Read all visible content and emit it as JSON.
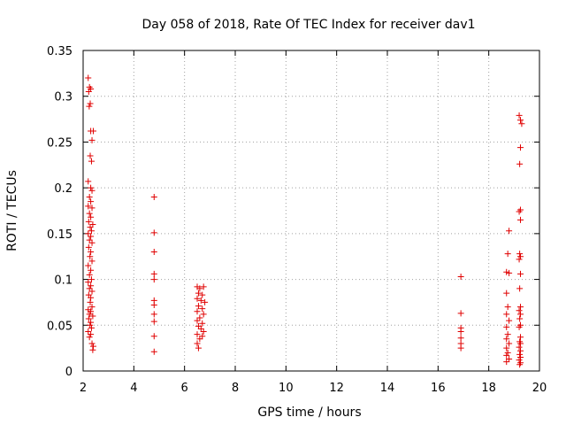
{
  "chart_data": {
    "type": "scatter",
    "title": "Day 058 of 2018, Rate Of TEC Index for receiver dav1",
    "xlabel": "GPS time / hours",
    "ylabel": "ROTI / TECUs",
    "xlim": [
      2,
      20
    ],
    "ylim": [
      0,
      0.35
    ],
    "xticks": [
      2,
      4,
      6,
      8,
      10,
      12,
      14,
      16,
      18,
      20
    ],
    "yticks": [
      0,
      0.05,
      0.1,
      0.15,
      0.2,
      0.25,
      0.3,
      0.35
    ],
    "xtick_labels": [
      "2",
      "4",
      "6",
      "8",
      "10",
      "12",
      "14",
      "16",
      "18",
      "20"
    ],
    "ytick_labels": [
      "0",
      "0.05",
      "0.1",
      "0.15",
      "0.2",
      "0.25",
      "0.3",
      "0.35"
    ],
    "grid": true,
    "marker": "+",
    "marker_color": "#e00000",
    "series": [
      {
        "points": [
          [
            2.2,
            0.32
          ],
          [
            2.25,
            0.31
          ],
          [
            2.3,
            0.308
          ],
          [
            2.22,
            0.305
          ],
          [
            2.28,
            0.292
          ],
          [
            2.24,
            0.289
          ],
          [
            2.3,
            0.262
          ],
          [
            2.4,
            0.262
          ],
          [
            2.35,
            0.252
          ],
          [
            2.28,
            0.235
          ],
          [
            2.33,
            0.229
          ],
          [
            2.2,
            0.207
          ],
          [
            2.3,
            0.2
          ],
          [
            2.35,
            0.197
          ],
          [
            2.25,
            0.19
          ],
          [
            2.3,
            0.185
          ],
          [
            2.2,
            0.18
          ],
          [
            2.35,
            0.178
          ],
          [
            2.25,
            0.172
          ],
          [
            2.3,
            0.168
          ],
          [
            2.22,
            0.163
          ],
          [
            2.38,
            0.16
          ],
          [
            2.28,
            0.157
          ],
          [
            2.33,
            0.153
          ],
          [
            2.2,
            0.15
          ],
          [
            2.3,
            0.147
          ],
          [
            2.25,
            0.143
          ],
          [
            2.35,
            0.14
          ],
          [
            2.22,
            0.135
          ],
          [
            2.3,
            0.13
          ],
          [
            2.27,
            0.125
          ],
          [
            2.35,
            0.12
          ],
          [
            2.2,
            0.115
          ],
          [
            2.3,
            0.11
          ],
          [
            2.25,
            0.105
          ],
          [
            2.33,
            0.1
          ],
          [
            2.2,
            0.097
          ],
          [
            2.3,
            0.093
          ],
          [
            2.25,
            0.09
          ],
          [
            2.35,
            0.087
          ],
          [
            2.22,
            0.083
          ],
          [
            2.3,
            0.08
          ],
          [
            2.28,
            0.075
          ],
          [
            2.35,
            0.07
          ],
          [
            2.2,
            0.067
          ],
          [
            2.3,
            0.065
          ],
          [
            2.25,
            0.062
          ],
          [
            2.38,
            0.06
          ],
          [
            2.22,
            0.057
          ],
          [
            2.3,
            0.053
          ],
          [
            2.27,
            0.05
          ],
          [
            2.33,
            0.047
          ],
          [
            2.2,
            0.043
          ],
          [
            2.3,
            0.04
          ],
          [
            2.25,
            0.037
          ],
          [
            2.35,
            0.03
          ],
          [
            2.4,
            0.027
          ],
          [
            2.38,
            0.023
          ],
          [
            4.8,
            0.19
          ],
          [
            4.8,
            0.151
          ],
          [
            4.8,
            0.13
          ],
          [
            4.8,
            0.106
          ],
          [
            4.8,
            0.1
          ],
          [
            4.8,
            0.077
          ],
          [
            4.8,
            0.072
          ],
          [
            4.8,
            0.062
          ],
          [
            4.8,
            0.054
          ],
          [
            4.8,
            0.038
          ],
          [
            4.8,
            0.021
          ],
          [
            6.5,
            0.092
          ],
          [
            6.6,
            0.09
          ],
          [
            6.75,
            0.092
          ],
          [
            6.55,
            0.085
          ],
          [
            6.7,
            0.083
          ],
          [
            6.5,
            0.079
          ],
          [
            6.65,
            0.077
          ],
          [
            6.8,
            0.075
          ],
          [
            6.55,
            0.071
          ],
          [
            6.7,
            0.068
          ],
          [
            6.5,
            0.065
          ],
          [
            6.75,
            0.062
          ],
          [
            6.6,
            0.058
          ],
          [
            6.5,
            0.055
          ],
          [
            6.7,
            0.052
          ],
          [
            6.55,
            0.049
          ],
          [
            6.65,
            0.046
          ],
          [
            6.75,
            0.043
          ],
          [
            6.5,
            0.04
          ],
          [
            6.7,
            0.038
          ],
          [
            6.6,
            0.035
          ],
          [
            6.5,
            0.03
          ],
          [
            6.55,
            0.025
          ],
          [
            16.9,
            0.103
          ],
          [
            16.9,
            0.063
          ],
          [
            16.9,
            0.047
          ],
          [
            16.9,
            0.043
          ],
          [
            16.9,
            0.036
          ],
          [
            16.9,
            0.03
          ],
          [
            16.9,
            0.025
          ],
          [
            18.8,
            0.153
          ],
          [
            18.75,
            0.128
          ],
          [
            18.7,
            0.108
          ],
          [
            18.8,
            0.107
          ],
          [
            18.7,
            0.085
          ],
          [
            18.75,
            0.07
          ],
          [
            18.7,
            0.062
          ],
          [
            18.8,
            0.055
          ],
          [
            18.7,
            0.048
          ],
          [
            18.75,
            0.04
          ],
          [
            18.7,
            0.035
          ],
          [
            18.8,
            0.03
          ],
          [
            18.7,
            0.025
          ],
          [
            18.75,
            0.02
          ],
          [
            18.7,
            0.017
          ],
          [
            18.8,
            0.013
          ],
          [
            18.7,
            0.01
          ],
          [
            19.2,
            0.279
          ],
          [
            19.25,
            0.274
          ],
          [
            19.3,
            0.27
          ],
          [
            19.25,
            0.244
          ],
          [
            19.22,
            0.226
          ],
          [
            19.25,
            0.176
          ],
          [
            19.2,
            0.174
          ],
          [
            19.25,
            0.165
          ],
          [
            19.22,
            0.128
          ],
          [
            19.25,
            0.125
          ],
          [
            19.2,
            0.122
          ],
          [
            19.25,
            0.106
          ],
          [
            19.22,
            0.09
          ],
          [
            19.25,
            0.07
          ],
          [
            19.2,
            0.066
          ],
          [
            19.25,
            0.062
          ],
          [
            19.22,
            0.057
          ],
          [
            19.25,
            0.05
          ],
          [
            19.2,
            0.048
          ],
          [
            19.25,
            0.037
          ],
          [
            19.22,
            0.032
          ],
          [
            19.25,
            0.03
          ],
          [
            19.2,
            0.026
          ],
          [
            19.25,
            0.022
          ],
          [
            19.22,
            0.018
          ],
          [
            19.25,
            0.015
          ],
          [
            19.2,
            0.012
          ],
          [
            19.25,
            0.009
          ],
          [
            19.22,
            0.007
          ]
        ]
      }
    ]
  }
}
